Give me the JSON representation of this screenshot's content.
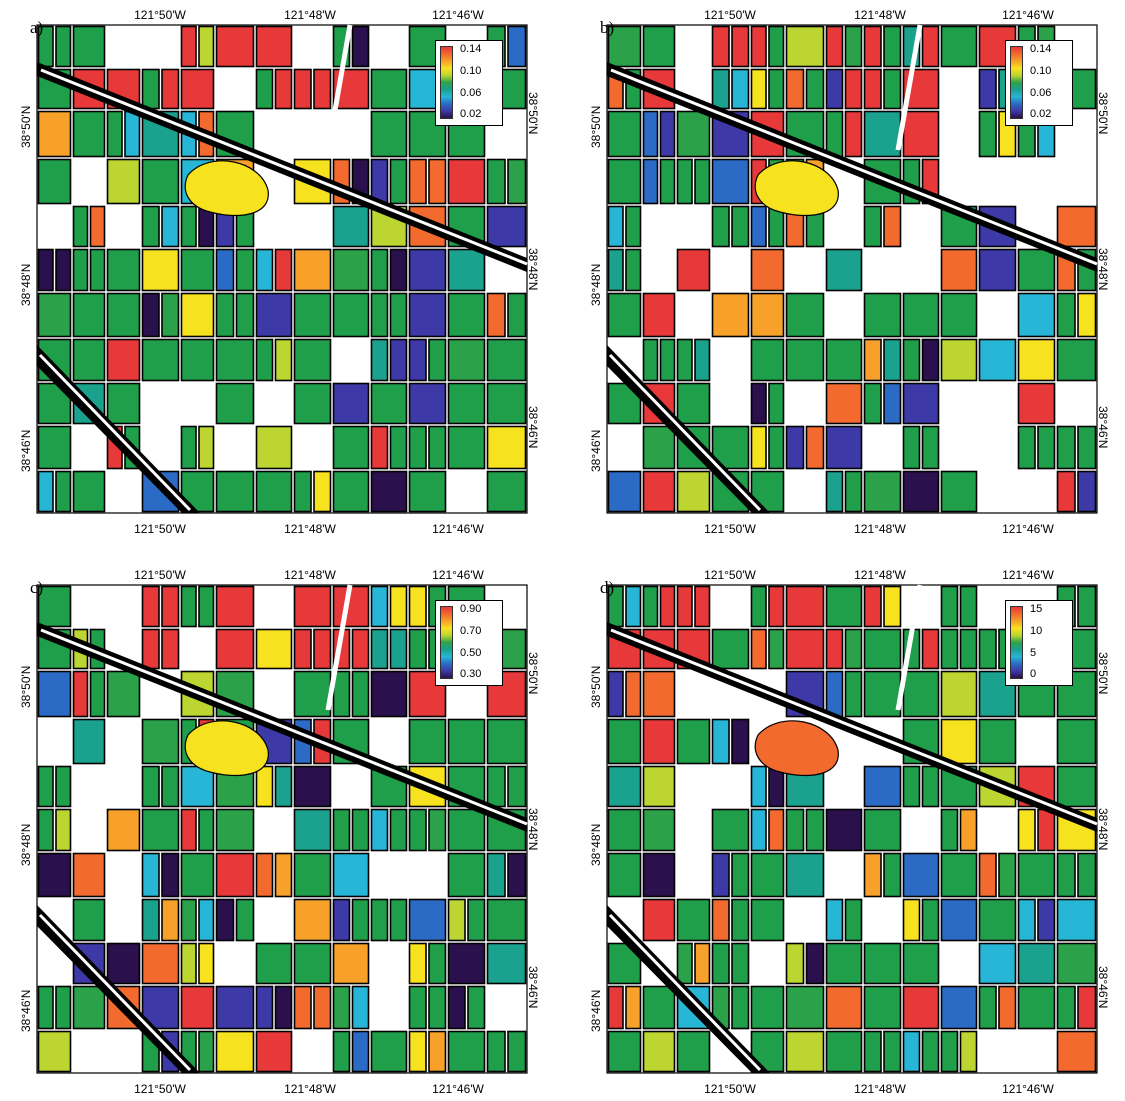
{
  "panels": [
    {
      "label": "a)",
      "legend": [
        "0.14",
        "0.10",
        "0.06",
        "0.02"
      ],
      "seed": 11,
      "hot": 0.6
    },
    {
      "label": "b)",
      "legend": [
        "0.14",
        "0.10",
        "0.06",
        "0.02"
      ],
      "seed": 23,
      "hot": 0.35
    },
    {
      "label": "c)",
      "legend": [
        "0.90",
        "0.70",
        "0.50",
        "0.30"
      ],
      "seed": 37,
      "hot": 0.55
    },
    {
      "label": "d)",
      "legend": [
        "15",
        "10",
        "5",
        "0"
      ],
      "seed": 53,
      "hot": 0.4
    }
  ],
  "axes": {
    "lon": [
      "121°50'W",
      "121°48'W",
      "121°46'W"
    ],
    "lat": [
      "38°50'N",
      "38°48'N",
      "38°46'N"
    ]
  },
  "colors": {
    "palette": [
      "#e8393a",
      "#f26a2e",
      "#f7a12b",
      "#f7e21f",
      "#bcd531",
      "#2ba24a",
      "#1aa28f",
      "#27b6d6",
      "#2b6bc6",
      "#3d3aa7",
      "#2a104d"
    ],
    "field": "#1f9f4a",
    "outline": "#000000",
    "background": "#ffffff"
  }
}
